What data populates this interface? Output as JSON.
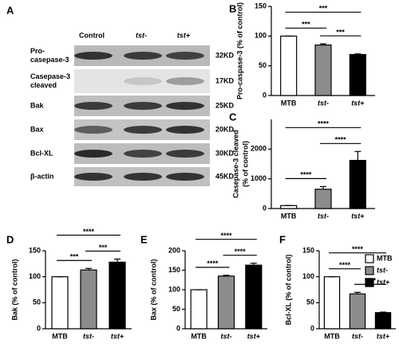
{
  "blot": {
    "panel_label": "A",
    "columns": [
      "Control",
      "tst-",
      "tst+"
    ],
    "rows": [
      {
        "label": [
          "Pro-",
          "casepase-3"
        ],
        "size": "32KD"
      },
      {
        "label": [
          "Casepase-3",
          "cleaved"
        ],
        "size": "17KD"
      },
      {
        "label": [
          "Bak"
        ],
        "size": "25KD"
      },
      {
        "label": [
          "Bax"
        ],
        "size": "20KD"
      },
      {
        "label": [
          "Bcl-XL"
        ],
        "size": "30KD"
      },
      {
        "label": [
          "β-actin"
        ],
        "size": "45KD"
      }
    ]
  },
  "chart_data": [
    {
      "type": "bar",
      "panel_label": "B",
      "y_label": [
        "Pro-caspase-3 (% of control)"
      ],
      "categories": [
        "MTB",
        "tst-",
        "tst+"
      ],
      "values": [
        100,
        85,
        69
      ],
      "errors": [
        0,
        2,
        1
      ],
      "colors": [
        "#ffffff",
        "#8c8c8c",
        "#000000"
      ],
      "ylim": [
        0,
        150
      ],
      "yticks": [
        0,
        50,
        100,
        150
      ],
      "annotations": [
        {
          "from": "MTB",
          "to": "tst-",
          "label": "***"
        },
        {
          "from": "tst-",
          "to": "tst+",
          "label": "***"
        },
        {
          "from": "MTB",
          "to": "tst+",
          "label": "***"
        }
      ]
    },
    {
      "type": "bar",
      "panel_label": "C",
      "y_label": [
        "Casepase-3 cleaved",
        "(% of control)"
      ],
      "categories": [
        "MTB",
        "tst-",
        "tst+"
      ],
      "values": [
        100,
        650,
        1620
      ],
      "errors": [
        0,
        90,
        300
      ],
      "colors": [
        "#ffffff",
        "#8c8c8c",
        "#000000"
      ],
      "ylim": [
        0,
        3000
      ],
      "yticks": [
        0,
        1000,
        2000
      ],
      "annotations": [
        {
          "from": "MTB",
          "to": "tst-",
          "label": "****"
        },
        {
          "from": "tst-",
          "to": "tst+",
          "label": "****"
        },
        {
          "from": "MTB",
          "to": "tst+",
          "label": "****"
        }
      ]
    },
    {
      "type": "bar",
      "panel_label": "D",
      "y_label": [
        "Bak (% of control)"
      ],
      "categories": [
        "MTB",
        "tst-",
        "tst+"
      ],
      "values": [
        100,
        113,
        128
      ],
      "errors": [
        0,
        3,
        6
      ],
      "colors": [
        "#ffffff",
        "#8c8c8c",
        "#000000"
      ],
      "ylim": [
        0,
        150
      ],
      "yticks": [
        0,
        50,
        100,
        150
      ],
      "annotations": [
        {
          "from": "MTB",
          "to": "tst-",
          "label": "***"
        },
        {
          "from": "tst-",
          "to": "tst+",
          "label": "***"
        },
        {
          "from": "MTB",
          "to": "tst+",
          "label": "****"
        }
      ]
    },
    {
      "type": "bar",
      "panel_label": "E",
      "y_label": [
        "Bax (% of control)"
      ],
      "categories": [
        "MTB",
        "tst-",
        "tst+"
      ],
      "values": [
        100,
        135,
        163
      ],
      "errors": [
        0,
        2,
        5
      ],
      "colors": [
        "#ffffff",
        "#8c8c8c",
        "#000000"
      ],
      "ylim": [
        0,
        200
      ],
      "yticks": [
        0,
        50,
        100,
        150,
        200
      ],
      "annotations": [
        {
          "from": "MTB",
          "to": "tst-",
          "label": "****"
        },
        {
          "from": "tst-",
          "to": "tst+",
          "label": "****"
        },
        {
          "from": "MTB",
          "to": "tst+",
          "label": "****"
        }
      ]
    },
    {
      "type": "bar",
      "panel_label": "F",
      "y_label": [
        "Bcl-XL (% of control)"
      ],
      "categories": [
        "MTB",
        "tst-",
        "tst+"
      ],
      "values": [
        100,
        67,
        31
      ],
      "errors": [
        0,
        3,
        1
      ],
      "colors": [
        "#ffffff",
        "#8c8c8c",
        "#000000"
      ],
      "ylim": [
        0,
        150
      ],
      "yticks": [
        0,
        50,
        100,
        150
      ],
      "legend": true,
      "annotations": [
        {
          "from": "MTB",
          "to": "tst-",
          "label": "****"
        },
        {
          "from": "tst-",
          "to": "tst+",
          "label": "****"
        },
        {
          "from": "MTB",
          "to": "tst+",
          "label": "****"
        }
      ]
    }
  ]
}
